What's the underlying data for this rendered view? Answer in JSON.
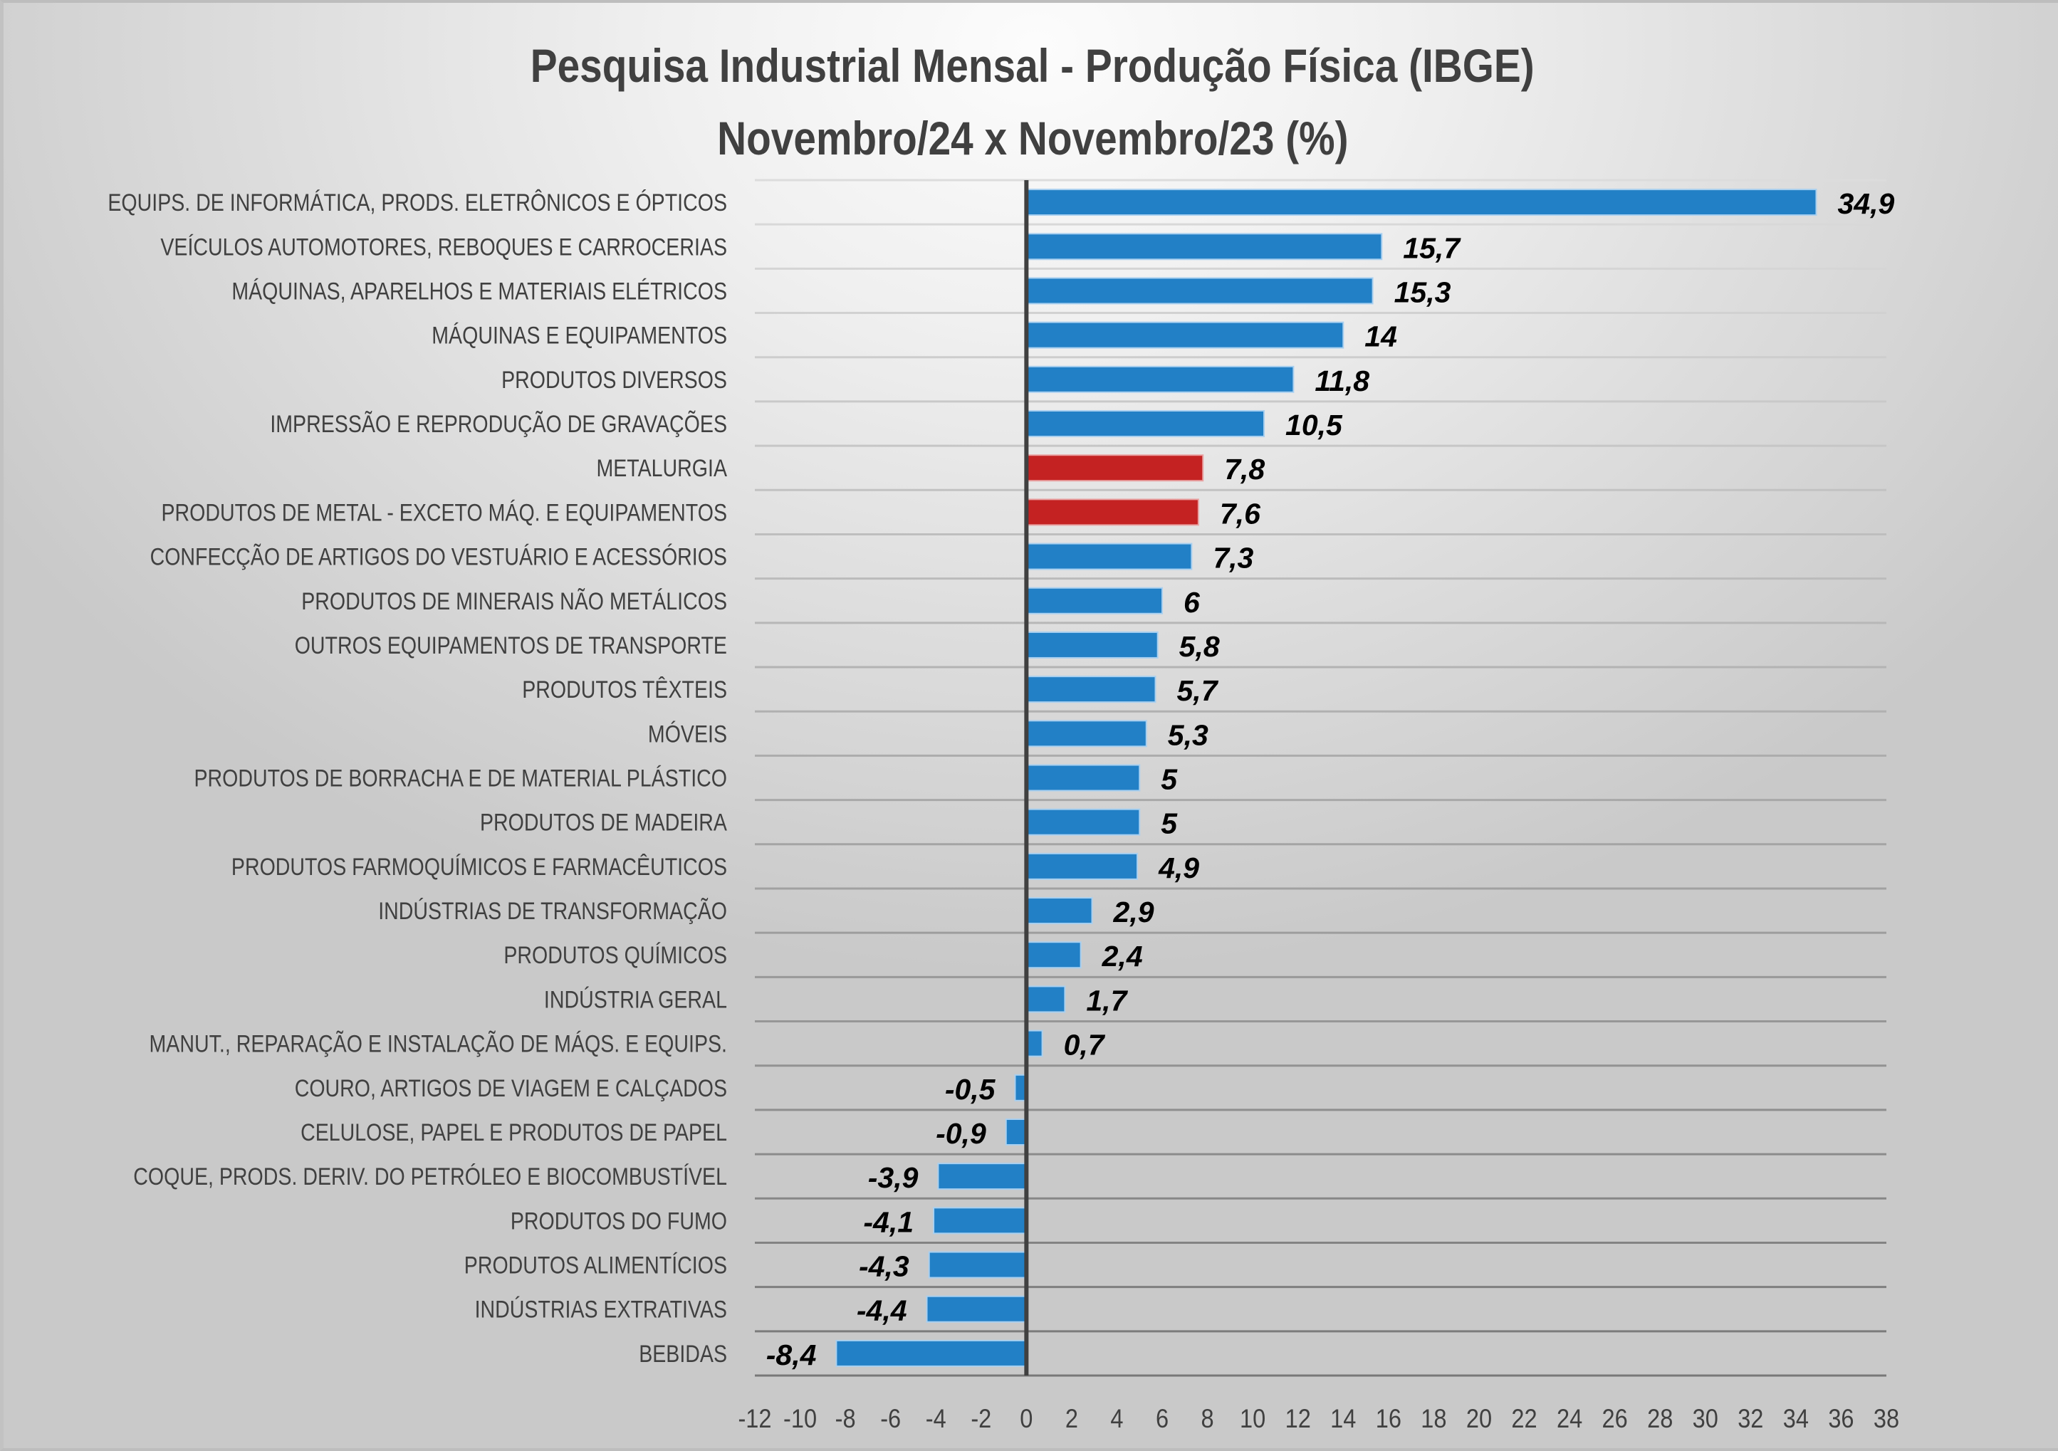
{
  "chart_data": {
    "type": "bar",
    "orientation": "horizontal",
    "title": "Pesquisa Industrial Mensal - Produção Física (IBGE)",
    "subtitle": "Novembro/24 x Novembro/23 (%)",
    "xlabel": "",
    "ylabel": "",
    "xlim": [
      -12,
      38
    ],
    "x_ticks": [
      "-12",
      "-10",
      "-8",
      "-6",
      "-4",
      "-2",
      "0",
      "2",
      "4",
      "6",
      "8",
      "10",
      "12",
      "14",
      "16",
      "18",
      "20",
      "22",
      "24",
      "26",
      "28",
      "30",
      "32",
      "34",
      "36",
      "38"
    ],
    "grid": true,
    "legend": "none",
    "colors": {
      "default": "#2280c6",
      "highlight": "#c42222"
    },
    "categories": [
      "EQUIPS. DE INFORMÁTICA, PRODS. ELETRÔNICOS E ÓPTICOS",
      "VEÍCULOS AUTOMOTORES, REBOQUES E CARROCERIAS",
      "MÁQUINAS, APARELHOS E MATERIAIS ELÉTRICOS",
      "MÁQUINAS E EQUIPAMENTOS",
      "PRODUTOS DIVERSOS",
      "IMPRESSÃO E REPRODUÇÃO DE GRAVAÇÕES",
      "METALURGIA",
      "PRODUTOS DE METAL - EXCETO MÁQ. E EQUIPAMENTOS",
      "CONFECÇÃO DE ARTIGOS DO VESTUÁRIO E ACESSÓRIOS",
      "PRODUTOS DE MINERAIS NÃO METÁLICOS",
      "OUTROS EQUIPAMENTOS DE TRANSPORTE",
      "PRODUTOS TÊXTEIS",
      "MÓVEIS",
      "PRODUTOS DE BORRACHA E DE MATERIAL PLÁSTICO",
      "PRODUTOS DE MADEIRA",
      "PRODUTOS FARMOQUÍMICOS E FARMACÊUTICOS",
      "INDÚSTRIAS DE TRANSFORMAÇÃO",
      "PRODUTOS QUÍMICOS",
      "INDÚSTRIA GERAL",
      "MANUT., REPARAÇÃO E INSTALAÇÃO DE MÁQS. E EQUIPS.",
      "COURO, ARTIGOS DE VIAGEM E CALÇADOS",
      "CELULOSE, PAPEL E PRODUTOS DE PAPEL",
      "COQUE, PRODS. DERIV. DO PETRÓLEO E BIOCOMBUSTÍVEL",
      "PRODUTOS DO FUMO",
      "PRODUTOS ALIMENTÍCIOS",
      "INDÚSTRIAS EXTRATIVAS",
      "BEBIDAS"
    ],
    "values": [
      34.9,
      15.7,
      15.3,
      14,
      11.8,
      10.5,
      7.8,
      7.6,
      7.3,
      6,
      5.8,
      5.7,
      5.3,
      5,
      5,
      4.9,
      2.9,
      2.4,
      1.7,
      0.7,
      -0.5,
      -0.9,
      -3.9,
      -4.1,
      -4.3,
      -4.4,
      -8.4
    ],
    "value_labels": [
      "34,9",
      "15,7",
      "15,3",
      "14",
      "11,8",
      "10,5",
      "7,8",
      "7,6",
      "7,3",
      "6",
      "5,8",
      "5,7",
      "5,3",
      "5",
      "5",
      "4,9",
      "2,9",
      "2,4",
      "1,7",
      "0,7",
      "-0,5",
      "-0,9",
      "-3,9",
      "-4,1",
      "-4,3",
      "-4,4",
      "-8,4"
    ],
    "highlighted": [
      false,
      false,
      false,
      false,
      false,
      false,
      true,
      true,
      false,
      false,
      false,
      false,
      false,
      false,
      false,
      false,
      false,
      false,
      false,
      false,
      false,
      false,
      false,
      false,
      false,
      false,
      false
    ]
  }
}
